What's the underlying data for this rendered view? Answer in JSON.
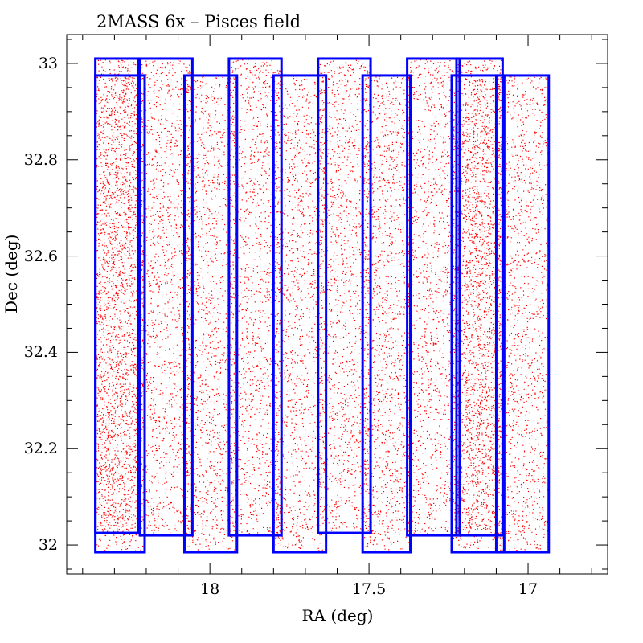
{
  "chart_data": {
    "type": "scatter",
    "title": "2MASS 6x – Pisces field",
    "xlabel": "RA (deg)",
    "ylabel": "Dec (deg)",
    "x_reversed": true,
    "xlim": [
      18.45,
      16.75
    ],
    "ylim": [
      31.94,
      33.06
    ],
    "x_ticks": [
      18,
      17.5,
      17
    ],
    "x_tick_labels": [
      "18",
      "17.5",
      "17"
    ],
    "y_ticks": [
      32,
      32.2,
      32.4,
      32.6,
      32.8,
      33
    ],
    "y_tick_labels": [
      "32",
      "32.2",
      "32.4",
      "32.6",
      "32.8",
      "33"
    ],
    "grid": false,
    "point_color": "#ff0000",
    "box_color": "#0000ff",
    "point_density": "uniform",
    "scan_boxes": [
      {
        "ra_east": 18.36,
        "ra_west": 18.225,
        "dec_min": 32.025,
        "dec_max": 33.01
      },
      {
        "ra_east": 18.36,
        "ra_west": 18.205,
        "dec_min": 31.985,
        "dec_max": 32.975
      },
      {
        "ra_east": 18.22,
        "ra_west": 18.055,
        "dec_min": 32.02,
        "dec_max": 33.01
      },
      {
        "ra_east": 18.08,
        "ra_west": 17.915,
        "dec_min": 31.985,
        "dec_max": 32.975
      },
      {
        "ra_east": 17.94,
        "ra_west": 17.775,
        "dec_min": 32.02,
        "dec_max": 33.01
      },
      {
        "ra_east": 17.8,
        "ra_west": 17.635,
        "dec_min": 31.985,
        "dec_max": 32.975
      },
      {
        "ra_east": 17.66,
        "ra_west": 17.495,
        "dec_min": 32.025,
        "dec_max": 33.01
      },
      {
        "ra_east": 17.52,
        "ra_west": 17.37,
        "dec_min": 31.985,
        "dec_max": 32.975
      },
      {
        "ra_east": 17.38,
        "ra_west": 17.215,
        "dec_min": 32.02,
        "dec_max": 33.01
      },
      {
        "ra_east": 17.24,
        "ra_west": 17.075,
        "dec_min": 31.985,
        "dec_max": 32.975
      },
      {
        "ra_east": 17.225,
        "ra_west": 17.08,
        "dec_min": 32.02,
        "dec_max": 33.01
      },
      {
        "ra_east": 17.1,
        "ra_west": 16.935,
        "dec_min": 31.985,
        "dec_max": 32.975
      }
    ]
  }
}
